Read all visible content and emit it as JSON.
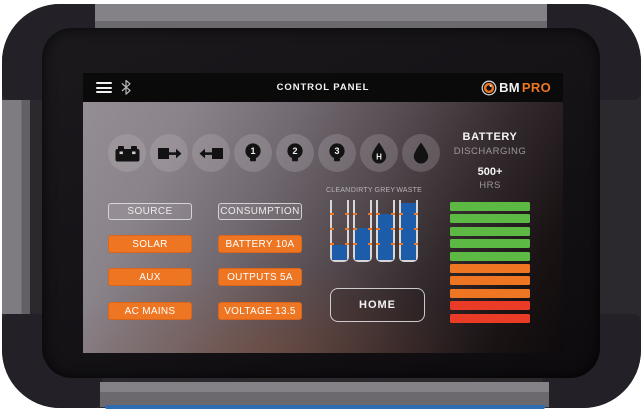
{
  "header": {
    "title": "CONTROL PANEL"
  },
  "brand": {
    "bm": "BM",
    "pro": "PRO"
  },
  "icons": {
    "items": [
      {
        "name": "battery",
        "label": ""
      },
      {
        "name": "power-output",
        "label": ""
      },
      {
        "name": "power-input",
        "label": ""
      },
      {
        "name": "light-1",
        "label": "1"
      },
      {
        "name": "light-2",
        "label": "2"
      },
      {
        "name": "light-3",
        "label": "3"
      },
      {
        "name": "hot-water",
        "label": "H"
      },
      {
        "name": "water-pump",
        "label": ""
      }
    ]
  },
  "battery": {
    "title": "BATTERY",
    "status": "DISCHARGING",
    "hours": "500+",
    "hours_unit": "HRS",
    "segments": [
      "green",
      "green",
      "green",
      "green",
      "green",
      "orange",
      "orange",
      "orange",
      "red",
      "red"
    ]
  },
  "source": {
    "header": "SOURCE",
    "items": [
      "SOLAR",
      "AUX",
      "AC MAINS"
    ]
  },
  "consumption": {
    "header": "CONSUMPTION",
    "items": [
      "BATTERY 10A",
      "OUTPUTS 5A",
      "VOLTAGE 13.5"
    ]
  },
  "tanks": {
    "items": [
      {
        "label": "CLEAN",
        "level": 25
      },
      {
        "label": "DIRTY",
        "level": 53
      },
      {
        "label": "GREY",
        "level": 77
      },
      {
        "label": "WASTE",
        "level": 95
      }
    ]
  },
  "home": {
    "label": "HOME"
  },
  "colors": {
    "green": "#5cb944",
    "orange": "#ee7623",
    "red": "#e93b25",
    "blue": "#1d5ca8"
  }
}
